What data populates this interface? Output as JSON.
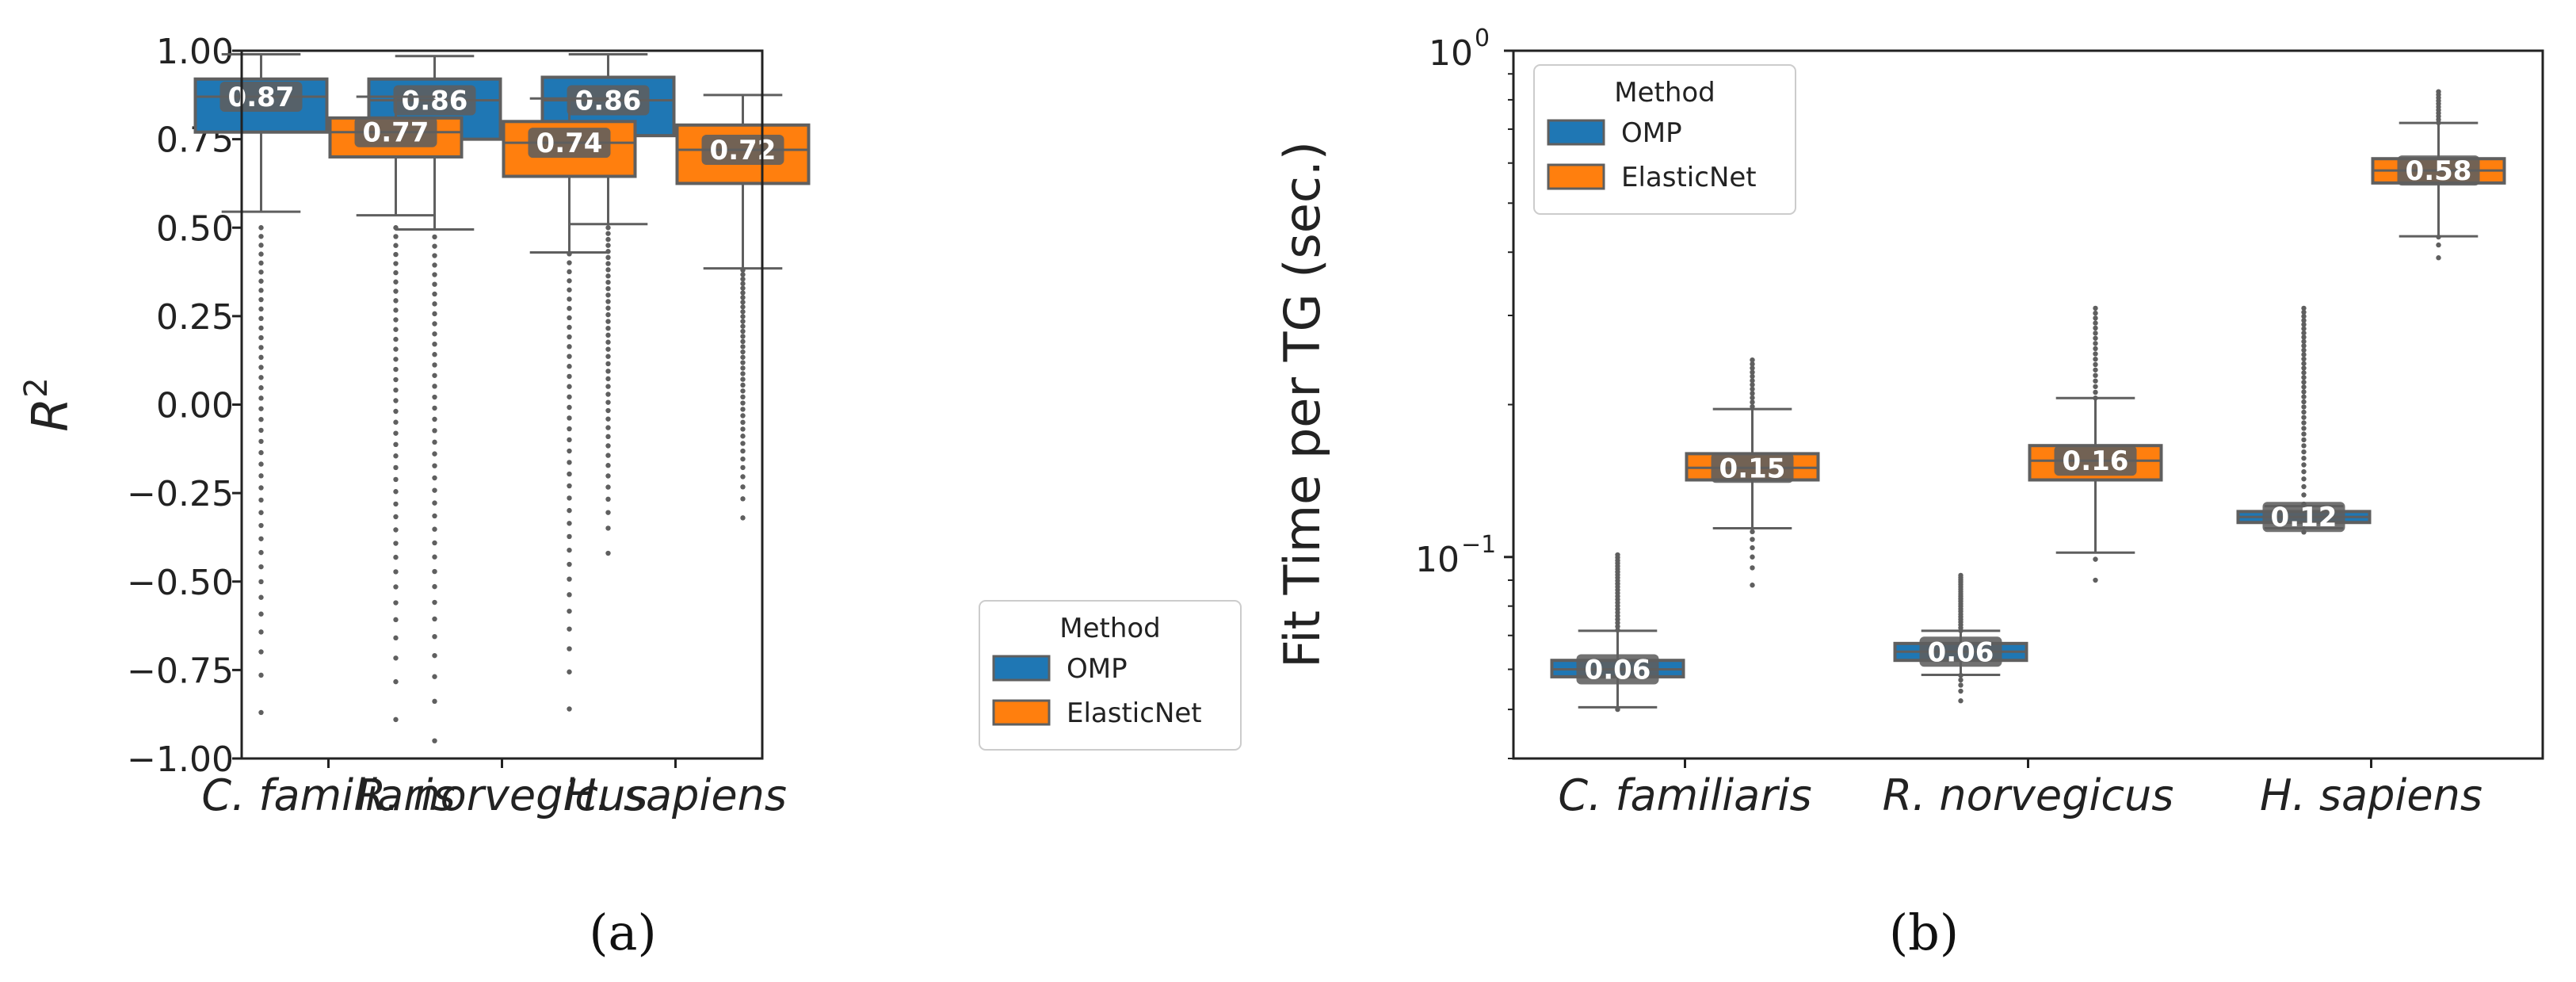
{
  "chart_data": [
    {
      "type": "box",
      "caption": "(a)",
      "ylabel": "R^2",
      "yscale": "linear",
      "ylim": [
        -1.0,
        1.0
      ],
      "yticks": [
        1.0,
        0.75,
        0.5,
        0.25,
        0.0,
        -0.25,
        -0.5,
        -0.75,
        -1.0
      ],
      "ytick_labels": [
        "1.00",
        "0.75",
        "0.50",
        "0.25",
        "0.00",
        "−0.25",
        "−0.50",
        "−0.75",
        "−1.00"
      ],
      "categories": [
        "C. familiaris",
        "R. norvegicus",
        "H. sapiens"
      ],
      "legend": {
        "title": "Method",
        "placement": "bottom-right",
        "entries": [
          "OMP",
          "ElasticNet"
        ]
      },
      "series": [
        {
          "name": "OMP",
          "color": "#1f77b4",
          "boxes": [
            {
              "median": 0.87,
              "q1": 0.77,
              "q3": 0.92,
              "whisker_low": 0.545,
              "whisker_high": 0.99,
              "label": "0.87"
            },
            {
              "median": 0.86,
              "q1": 0.75,
              "q3": 0.92,
              "whisker_low": 0.495,
              "whisker_high": 0.985,
              "label": "0.86"
            },
            {
              "median": 0.86,
              "q1": 0.76,
              "q3": 0.925,
              "whisker_low": 0.51,
              "whisker_high": 0.99,
              "label": "0.86"
            }
          ],
          "outliers": [
            [
              -0.87,
              0.5
            ],
            [
              -0.95,
              0.5
            ],
            [
              -0.42,
              0.5
            ]
          ]
        },
        {
          "name": "ElasticNet",
          "color": "#ff7f0e",
          "boxes": [
            {
              "median": 0.77,
              "q1": 0.7,
              "q3": 0.81,
              "whisker_low": 0.535,
              "whisker_high": 0.87,
              "label": "0.77"
            },
            {
              "median": 0.74,
              "q1": 0.645,
              "q3": 0.8,
              "whisker_low": 0.43,
              "whisker_high": 0.865,
              "label": "0.74"
            },
            {
              "median": 0.72,
              "q1": 0.625,
              "q3": 0.79,
              "whisker_low": 0.385,
              "whisker_high": 0.875,
              "label": "0.72"
            }
          ],
          "outliers": [
            [
              -0.89,
              0.5
            ],
            [
              -0.86,
              0.5
            ],
            [
              -0.32,
              0.38
            ]
          ]
        }
      ]
    },
    {
      "type": "box",
      "caption": "(b)",
      "ylabel": "Fit Time per TG (sec.)",
      "yscale": "log",
      "ylim": [
        0.04,
        1.0
      ],
      "yticks": [
        1.0,
        0.1
      ],
      "ytick_labels": [
        [
          "10",
          "0"
        ],
        [
          "10",
          "−1"
        ]
      ],
      "categories": [
        "C. familiaris",
        "R. norvegicus",
        "H. sapiens"
      ],
      "legend": {
        "title": "Method",
        "placement": "top-left",
        "entries": [
          "OMP",
          "ElasticNet"
        ]
      },
      "series": [
        {
          "name": "OMP",
          "color": "#1f77b4",
          "boxes": [
            {
              "median": 0.06,
              "q1": 0.058,
              "q3": 0.0625,
              "whisker_low": 0.0505,
              "whisker_high": 0.0715,
              "label": "0.06"
            },
            {
              "median": 0.065,
              "q1": 0.0625,
              "q3": 0.0675,
              "whisker_low": 0.0585,
              "whisker_high": 0.0715,
              "label": "0.06"
            },
            {
              "median": 0.12,
              "q1": 0.117,
              "q3": 0.123,
              "whisker_low": 0.114,
              "whisker_high": 0.126,
              "label": "0.12"
            }
          ],
          "outliers": [
            [
              0.05,
              0.101
            ],
            [
              0.052,
              0.092
            ],
            [
              0.112,
              0.31
            ]
          ]
        },
        {
          "name": "ElasticNet",
          "color": "#ff7f0e",
          "boxes": [
            {
              "median": 0.15,
              "q1": 0.142,
              "q3": 0.16,
              "whisker_low": 0.114,
              "whisker_high": 0.196,
              "label": "0.15"
            },
            {
              "median": 0.155,
              "q1": 0.142,
              "q3": 0.166,
              "whisker_low": 0.102,
              "whisker_high": 0.206,
              "label": "0.16"
            },
            {
              "median": 0.58,
              "q1": 0.548,
              "q3": 0.612,
              "whisker_low": 0.43,
              "whisker_high": 0.72,
              "label": "0.58"
            }
          ],
          "outliers": [
            [
              0.088,
              0.245
            ],
            [
              0.09,
              0.31
            ],
            [
              0.39,
              0.83
            ]
          ]
        }
      ]
    }
  ]
}
